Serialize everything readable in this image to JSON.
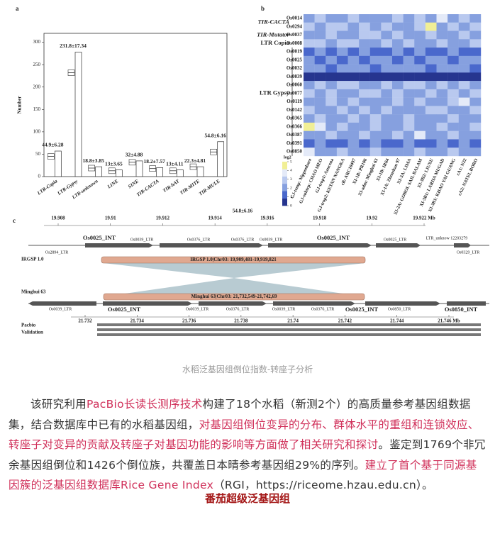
{
  "figure": {
    "panel_a": {
      "label": "a",
      "y_label": "Number",
      "categories": [
        "LTR-Copia",
        "LTR-Gypsy",
        "LTR-unknown",
        "LINE",
        "SINE",
        "TIR-CACTA",
        "TIR-hAT",
        "TIR-MITE",
        "TIR-MULE"
      ],
      "box_medians": [
        45,
        232,
        19,
        13,
        32,
        18,
        13,
        22,
        55
      ],
      "bar_values": [
        57,
        278,
        22,
        15,
        35,
        20,
        15,
        22,
        78
      ],
      "annotations": [
        "44.9±6.28",
        "231.8±17.34",
        "18.8±3.85",
        "13±3.65",
        "32±4.88",
        "18.2±7.57",
        "13±4.11",
        "22.3±4.81",
        "54.8±6.16"
      ],
      "extra_annotation": "54.8±6.16",
      "ylim": [
        0,
        320
      ],
      "yticks": [
        0,
        50,
        100,
        150,
        200,
        250,
        300
      ]
    },
    "panel_b": {
      "label": "b",
      "row_groups": [
        "TIR-CACTA",
        "TIR-Mutator",
        "LTR Copia",
        "LTR Gypsy"
      ],
      "rows": [
        "Os0014",
        "Os0294",
        "Os0037",
        "Os0008",
        "Os0019",
        "Os0025",
        "Os0032",
        "Os0039",
        "Os0060",
        "Os0077",
        "Os0119",
        "Os0142",
        "Os0365",
        "Os0366",
        "Os0387",
        "Os0391",
        "Os0850"
      ],
      "columns": [
        "GJ-temp: Nipponbare",
        "GJ-subtrp: CHAO MEO",
        "GJ-trop1: Azucena",
        "GJ-trop2: KETAN NANGKA",
        "cB: ARC10497",
        "XI-1B: PR106",
        "XI-adm: Minghui 63",
        "XI-1B: IR64",
        "XI-1A: Zhenshan 97",
        "XI-3A: LIMA",
        "XI-2A: GOBOL SAIL BALAM",
        "XI-3B2: LIUXU",
        "XI-3B1: LARHA MUGAD",
        "XI-3B1: KHAO YAI GUANG",
        "cA1: N22",
        "cA2: NATEL BORO"
      ],
      "values": [
        [
          2,
          3,
          2,
          2,
          3,
          2,
          2,
          2,
          3,
          2,
          3,
          2,
          4,
          2,
          3,
          2
        ],
        [
          3,
          2,
          3,
          3,
          2,
          3,
          2,
          3,
          2,
          2,
          3,
          5,
          2,
          3,
          2,
          3
        ],
        [
          2,
          2,
          3,
          2,
          2,
          3,
          3,
          2,
          3,
          2,
          2,
          3,
          2,
          2,
          3,
          2
        ],
        [
          3,
          3,
          2,
          3,
          3,
          2,
          2,
          3,
          2,
          3,
          2,
          2,
          3,
          2,
          2,
          3
        ],
        [
          1,
          2,
          1,
          2,
          1,
          2,
          1,
          1,
          2,
          1,
          2,
          1,
          1,
          2,
          1,
          1
        ],
        [
          2,
          1,
          2,
          1,
          2,
          1,
          2,
          2,
          1,
          2,
          1,
          2,
          2,
          1,
          2,
          2
        ],
        [
          2,
          2,
          1,
          2,
          2,
          2,
          1,
          2,
          2,
          2,
          2,
          1,
          2,
          2,
          2,
          1
        ],
        [
          0,
          0,
          0,
          0,
          0,
          0,
          0,
          0,
          0,
          0,
          0,
          0,
          0,
          0,
          0,
          0
        ],
        [
          2,
          3,
          2,
          3,
          3,
          2,
          2,
          3,
          2,
          3,
          3,
          2,
          3,
          2,
          3,
          2
        ],
        [
          3,
          2,
          3,
          2,
          2,
          3,
          3,
          2,
          3,
          2,
          2,
          3,
          2,
          3,
          2,
          3
        ],
        [
          2,
          2,
          3,
          2,
          3,
          2,
          2,
          2,
          3,
          2,
          3,
          2,
          2,
          3,
          4,
          2
        ],
        [
          3,
          2,
          2,
          3,
          2,
          3,
          2,
          3,
          2,
          2,
          2,
          3,
          3,
          2,
          2,
          3
        ],
        [
          2,
          3,
          2,
          2,
          3,
          2,
          3,
          2,
          2,
          3,
          2,
          2,
          2,
          3,
          2,
          2
        ],
        [
          5,
          4,
          2,
          3,
          2,
          2,
          3,
          2,
          2,
          3,
          2,
          2,
          3,
          2,
          2,
          3
        ],
        [
          2,
          2,
          3,
          2,
          2,
          3,
          2,
          2,
          3,
          2,
          4,
          2,
          2,
          3,
          2,
          2
        ],
        [
          1,
          2,
          1,
          1,
          2,
          1,
          2,
          1,
          1,
          2,
          1,
          1,
          2,
          1,
          2,
          1
        ],
        [
          4,
          2,
          2,
          3,
          2,
          2,
          3,
          2,
          2,
          2,
          3,
          2,
          2,
          3,
          2,
          2
        ]
      ],
      "colors": [
        "#26358f",
        "#4a68cc",
        "#86a0df",
        "#b9c9ef",
        "#e4eaf8",
        "#f1ef95"
      ],
      "legend_label": "log2",
      "legend_ticks": [
        0,
        1,
        2,
        3,
        4,
        5
      ]
    },
    "panel_c": {
      "label": "c",
      "top_ticks": [
        19.908,
        19.91,
        19.912,
        19.914,
        19.916,
        19.918,
        19.92,
        {
          "value": 19.922,
          "label": "19.922 Mb"
        }
      ],
      "bottom_ticks": [
        21.732,
        21.734,
        21.736,
        21.738,
        21.74,
        21.742,
        21.744,
        {
          "value": 21.746,
          "label": "21.746 Mb"
        }
      ],
      "top_genes": [
        "Os2894_LTR",
        "Os0025_INT",
        "Os0039_LTR",
        "Os0376_LTR",
        "Os0376_LTR",
        "Os0039_LTR",
        "Os0025_INT",
        "Os0025_LTR",
        "LTR_unknow 12203279",
        "Os0329_LTR"
      ],
      "bottom_genes": [
        "Os0039_LTR",
        "Os0025_INT",
        "Os0039_LTR",
        "Os0376_LTR",
        "Os0039_LTR",
        "Os0376_LTR",
        "Os0025_INT",
        "Os0850_LTR",
        "Os0850_INT"
      ],
      "ref_name": "IRGSP 1.0",
      "ref_region": "IRGSP 1.0|Chr03: 19,909,481-19,919,821",
      "query_name": "Minghui 63",
      "query_region": "Minghui 63|Chr03: 21,732,549-21,742,69",
      "validation_label": [
        "Pacbio",
        "Validation"
      ]
    },
    "caption": "水稻泛基因组倒位指数-转座子分析"
  },
  "body": {
    "paragraph": [
      "该研究利用",
      "PacBio长读长测序技术",
      "构建了18个水稻（新测2个）的高质量参考基因组数据集，结合数据库中已有的水稻基因组，",
      "对基因组倒位变异的分布、群体水平的重组和连锁效应、转座子对变异的贡献及转座子对基因功能的影响等方面做了相关研究和探讨",
      "。鉴定到1769个非冗余基因组倒位和1426个倒位族，共覆盖日本晴参考基因组29%的序列。",
      "建立了首个基于同源基因簇的泛基因组数据库Rice Gene Index",
      "（RGI，https://riceome.hzau.edu.cn）。"
    ],
    "heading": "番茄超级泛基因组"
  }
}
